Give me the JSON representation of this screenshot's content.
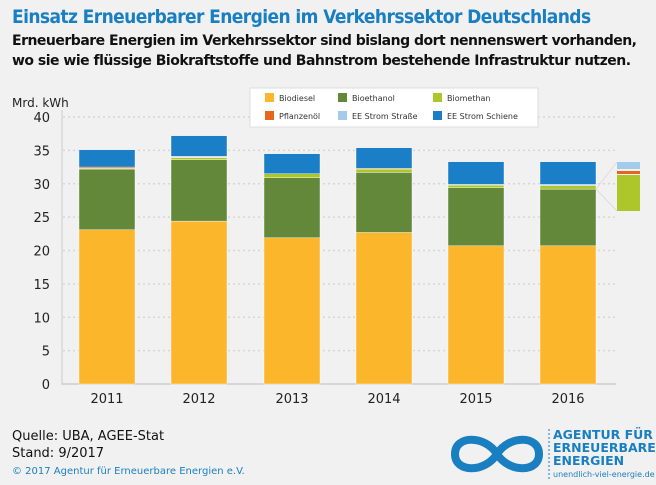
{
  "header": {
    "title": "Einsatz Erneuerbarer Energien im Verkehrssektor Deutschlands",
    "subtitle_line1": "Erneuerbare Energien im Verkehrssektor sind bislang dort nennenswert vorhanden,",
    "subtitle_line2": "wo sie wie flüssige Biokraftstoffe und Bahnstrom bestehende Infrastruktur nutzen."
  },
  "chart_data": {
    "type": "bar",
    "stacked": true,
    "ylabel": "Mrd. kWh",
    "ylim": [
      0,
      40
    ],
    "yticks": [
      0,
      5,
      10,
      15,
      20,
      25,
      30,
      35,
      40
    ],
    "grid": true,
    "legend": "top-center",
    "categories": [
      "2011",
      "2012",
      "2013",
      "2014",
      "2015",
      "2016"
    ],
    "series": [
      {
        "name": "Biodiesel",
        "color": "#fbb62c",
        "values": [
          23.1,
          24.4,
          21.9,
          22.7,
          20.7,
          20.7
        ]
      },
      {
        "name": "Bioethanol",
        "color": "#63883a",
        "values": [
          9.1,
          9.2,
          9.0,
          9.0,
          8.7,
          8.5
        ]
      },
      {
        "name": "Biomethan",
        "color": "#adc72a",
        "values": [
          0.1,
          0.3,
          0.6,
          0.5,
          0.4,
          0.5
        ]
      },
      {
        "name": "Pflanzenöl",
        "color": "#e8651d",
        "values": [
          0.2,
          0.1,
          0.0,
          0.1,
          0.0,
          0.0
        ]
      },
      {
        "name": "EE Strom Straße",
        "color": "#a2cbec",
        "values": [
          0.0,
          0.1,
          0.0,
          0.0,
          0.1,
          0.2
        ]
      },
      {
        "name": "EE Strom Schiene",
        "color": "#1a7fc6",
        "values": [
          2.6,
          3.1,
          3.0,
          3.1,
          3.4,
          3.4
        ]
      }
    ]
  },
  "footer": {
    "source": "Quelle: UBA, AGEE-Stat",
    "stand": "Stand: 9/2017",
    "copyright": "© 2017 Agentur für Erneuerbare Energien e.V."
  },
  "logo": {
    "line1": "AGENTUR FÜR",
    "line2": "ERNEUERBARE",
    "line3": "ENERGIEN",
    "url": "unendlich-viel-energie.de"
  }
}
